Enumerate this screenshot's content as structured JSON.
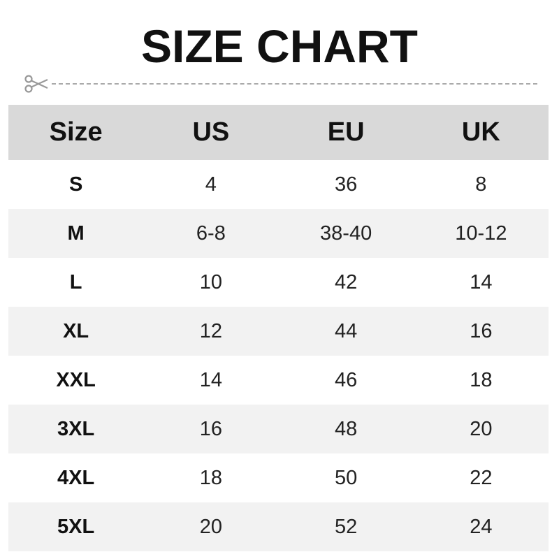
{
  "title": "SIZE CHART",
  "icons": {
    "cut": "scissors-icon"
  },
  "colors": {
    "header_bg": "#d9d9d9",
    "alt_row_bg": "#f2f2f2",
    "dash": "#aaaaaa"
  },
  "table": {
    "headers": [
      "Size",
      "US",
      "EU",
      "UK"
    ],
    "rows": [
      [
        "S",
        "4",
        "36",
        "8"
      ],
      [
        "M",
        "6-8",
        "38-40",
        "10-12"
      ],
      [
        "L",
        "10",
        "42",
        "14"
      ],
      [
        "XL",
        "12",
        "44",
        "16"
      ],
      [
        "XXL",
        "14",
        "46",
        "18"
      ],
      [
        "3XL",
        "16",
        "48",
        "20"
      ],
      [
        "4XL",
        "18",
        "50",
        "22"
      ],
      [
        "5XL",
        "20",
        "52",
        "24"
      ]
    ]
  }
}
